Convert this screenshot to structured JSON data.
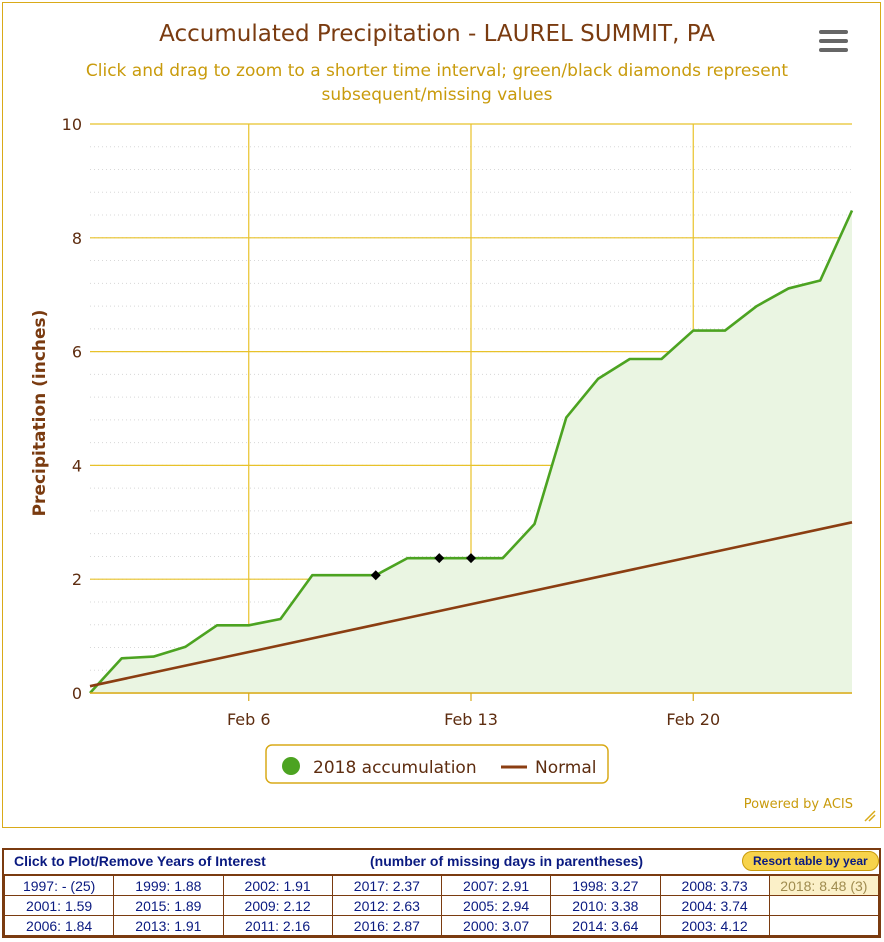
{
  "chart_data": {
    "type": "area",
    "title": "Accumulated Precipitation - LAUREL SUMMIT, PA",
    "subtitle": "Click and drag to zoom to a shorter time interval; green/black diamonds represent subsequent/missing values",
    "ylabel": "Precipitation (inches)",
    "xlabel": "",
    "ylim": [
      0,
      10
    ],
    "y_ticks": [
      "0",
      "2",
      "4",
      "6",
      "8",
      "10"
    ],
    "x_ticks": [
      {
        "day": 6,
        "label": "Feb 6"
      },
      {
        "day": 13,
        "label": "Feb 13"
      },
      {
        "day": 20,
        "label": "Feb 20"
      }
    ],
    "xlim_days": [
      1,
      25
    ],
    "grid": true,
    "legend_position": "bottom-center",
    "series": [
      {
        "name": "2018 accumulation",
        "color": "#4ca321",
        "fill": "#eaf5e2",
        "x_days": [
          1,
          2,
          3,
          4,
          5,
          6,
          7,
          8,
          9,
          10,
          11,
          12,
          13,
          14,
          15,
          16,
          17,
          18,
          19,
          20,
          21,
          22,
          23,
          24,
          25
        ],
        "values": [
          0.0,
          0.61,
          0.64,
          0.81,
          1.19,
          1.19,
          1.3,
          2.07,
          2.07,
          2.07,
          2.37,
          2.37,
          2.37,
          2.37,
          2.97,
          4.84,
          5.52,
          5.87,
          5.87,
          6.37,
          6.37,
          6.8,
          7.11,
          7.25,
          8.48
        ],
        "missing_markers_days": [
          10,
          12,
          13
        ]
      },
      {
        "name": "Normal",
        "color": "#8b3e12",
        "x_days": [
          1,
          25
        ],
        "values": [
          0.12,
          3.0
        ]
      }
    ]
  },
  "credit": "Powered by ACIS",
  "menu_icon": "hamburger-menu-icon",
  "years_table": {
    "header_left": "Click to Plot/Remove Years of Interest",
    "header_mid": "(number of missing days in parentheses)",
    "resort_label": "Resort table by year",
    "rows": [
      [
        "1997: - (25)",
        "1999: 1.88",
        "2002: 1.91",
        "2017: 2.37",
        "2007: 2.91",
        "1998: 3.27",
        "2008: 3.73",
        "2018: 8.48 (3)"
      ],
      [
        "2001: 1.59",
        "2015: 1.89",
        "2009: 2.12",
        "2012: 2.63",
        "2005: 2.94",
        "2010: 3.38",
        "2004: 3.74",
        ""
      ],
      [
        "2006: 1.84",
        "2013: 1.91",
        "2011: 2.16",
        "2016: 2.87",
        "2000: 3.07",
        "2014: 3.64",
        "2003: 4.12",
        ""
      ]
    ],
    "selected": "2018: 8.48 (3)"
  }
}
